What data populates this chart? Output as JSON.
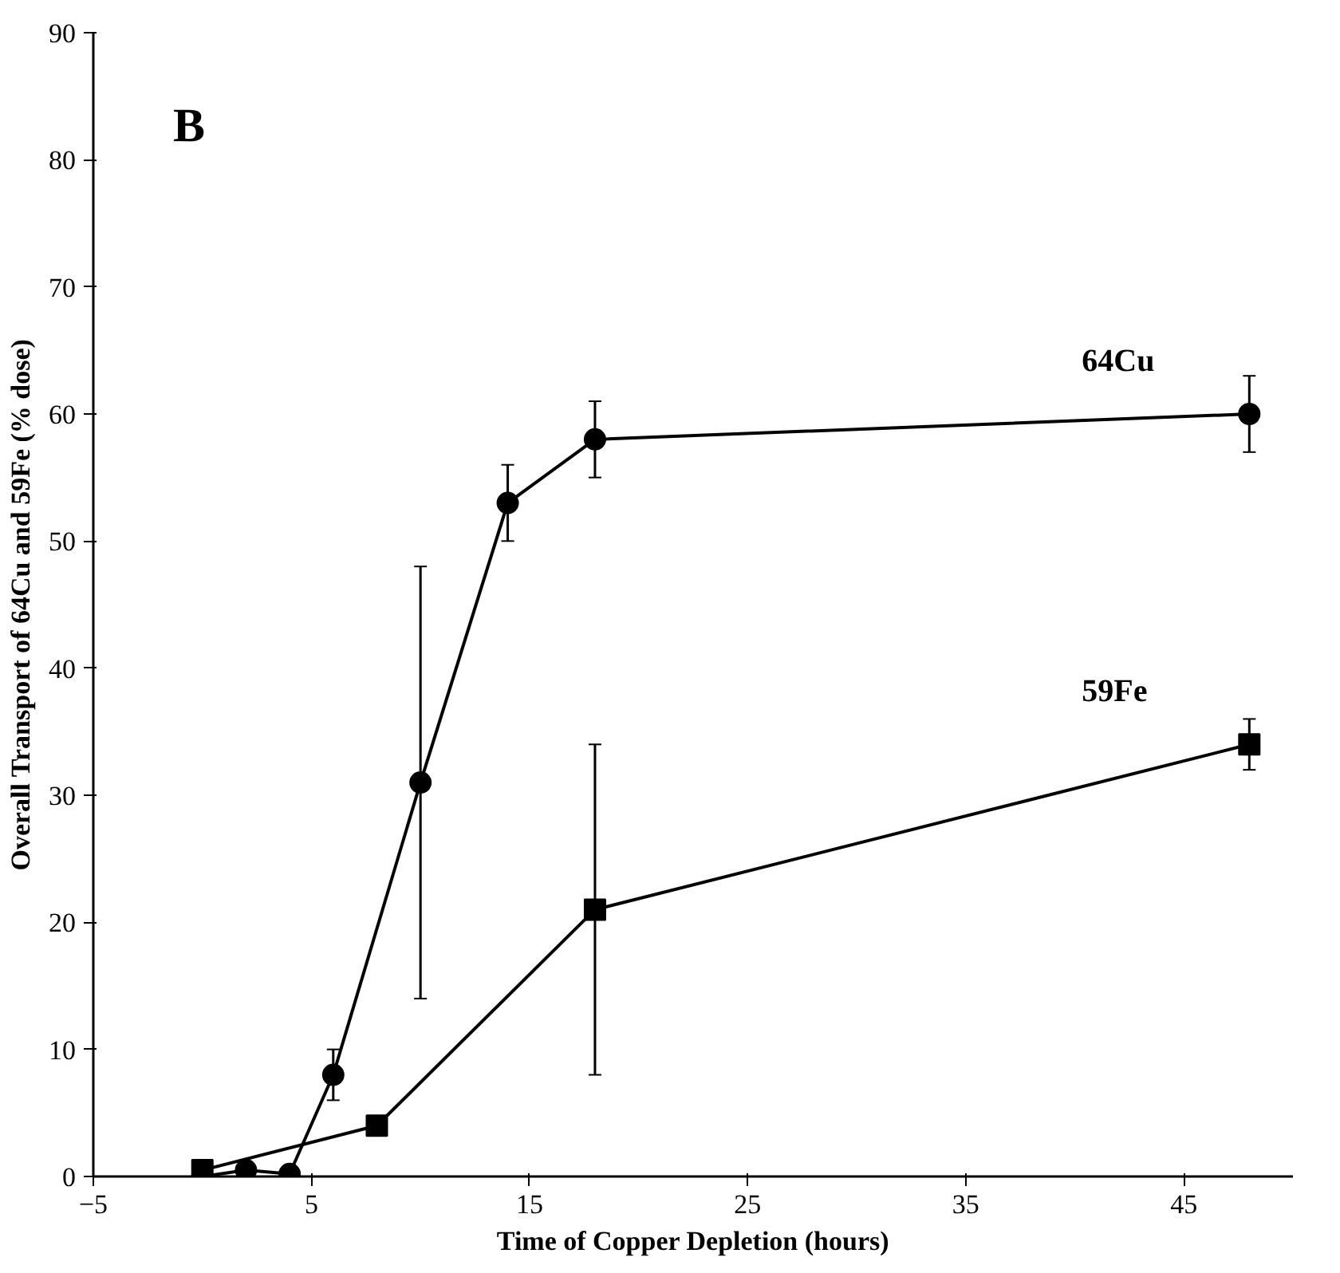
{
  "chart_data": {
    "type": "line",
    "xlabel": "Time of Copper Depletion (hours)",
    "ylabel": "Overall Transport of 64Cu and 59Fe (% dose)",
    "annotations": [
      "B"
    ],
    "xlim": [
      -5,
      50
    ],
    "xticks": [
      -5,
      5,
      15,
      25,
      35,
      45
    ],
    "ylim": [
      0,
      90
    ],
    "yticks": [
      0,
      10,
      20,
      30,
      40,
      50,
      60,
      70,
      80,
      90
    ],
    "grid": false,
    "line_style": "solid",
    "series": [
      {
        "name": "64Cu",
        "color": "#000000",
        "marker": "circle",
        "x": [
          0,
          2,
          4,
          6,
          10,
          14,
          18,
          48
        ],
        "values": [
          0,
          0.5,
          0.2,
          8,
          31,
          53,
          58,
          60
        ],
        "errors": [
          null,
          null,
          null,
          2,
          17,
          3,
          3,
          3
        ]
      },
      {
        "name": "59Fe",
        "color": "#000000",
        "marker": "square",
        "x": [
          0,
          8,
          18,
          48
        ],
        "values": [
          0.5,
          4,
          21,
          34
        ],
        "errors": [
          null,
          null,
          13,
          2
        ]
      }
    ]
  }
}
